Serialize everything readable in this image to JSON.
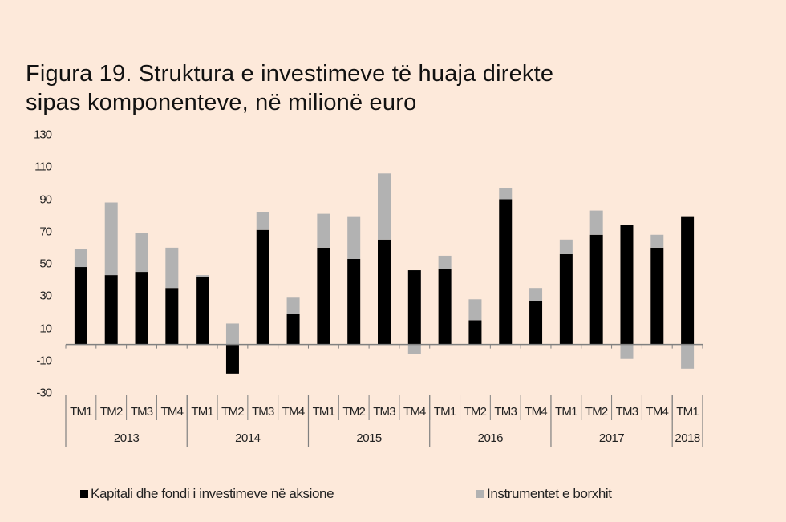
{
  "title": {
    "line1": "Figura 19. Struktura e investimeve  të huaja direkte",
    "line2": "sipas komponenteve,  në milionë euro"
  },
  "colors": {
    "background": "#FDE9DA",
    "equity": "#000000",
    "debt": "#B2B2B2",
    "axis": "#808080"
  },
  "chart_data": {
    "type": "bar",
    "stacked": true,
    "title": "Figura 19. Struktura e investimeve të huaja direkte sipas komponenteve, në milionë euro",
    "xlabel": "",
    "ylabel": "",
    "ylim": [
      -30,
      130
    ],
    "yticks": [
      130,
      110,
      90,
      70,
      50,
      30,
      10,
      -10,
      -30
    ],
    "grid": false,
    "legend_position": "bottom",
    "categories": [
      "TM1",
      "TM2",
      "TM3",
      "TM4",
      "TM1",
      "TM2",
      "TM3",
      "TM4",
      "TM1",
      "TM2",
      "TM3",
      "TM4",
      "TM1",
      "TM2",
      "TM3",
      "TM4",
      "TM1",
      "TM2",
      "TM3",
      "TM4",
      "TM1"
    ],
    "year_groups": [
      {
        "label": "2013",
        "count": 4
      },
      {
        "label": "2014",
        "count": 4
      },
      {
        "label": "2015",
        "count": 4
      },
      {
        "label": "2016",
        "count": 4
      },
      {
        "label": "2017",
        "count": 4
      },
      {
        "label": "2018",
        "count": 1
      }
    ],
    "series": [
      {
        "name": "Kapitali dhe fondi i investimeve në aksione",
        "color": "#000000",
        "values": [
          48,
          43,
          45,
          35,
          42,
          -18,
          71,
          19,
          60,
          53,
          65,
          46,
          47,
          15,
          90,
          27,
          56,
          68,
          74,
          60,
          79
        ]
      },
      {
        "name": "Instrumentet e borxhit",
        "color": "#B2B2B2",
        "values": [
          11,
          45,
          24,
          25,
          1,
          13,
          11,
          10,
          21,
          26,
          41,
          -6,
          8,
          13,
          7,
          8,
          9,
          15,
          -9,
          8,
          -15
        ]
      }
    ]
  }
}
